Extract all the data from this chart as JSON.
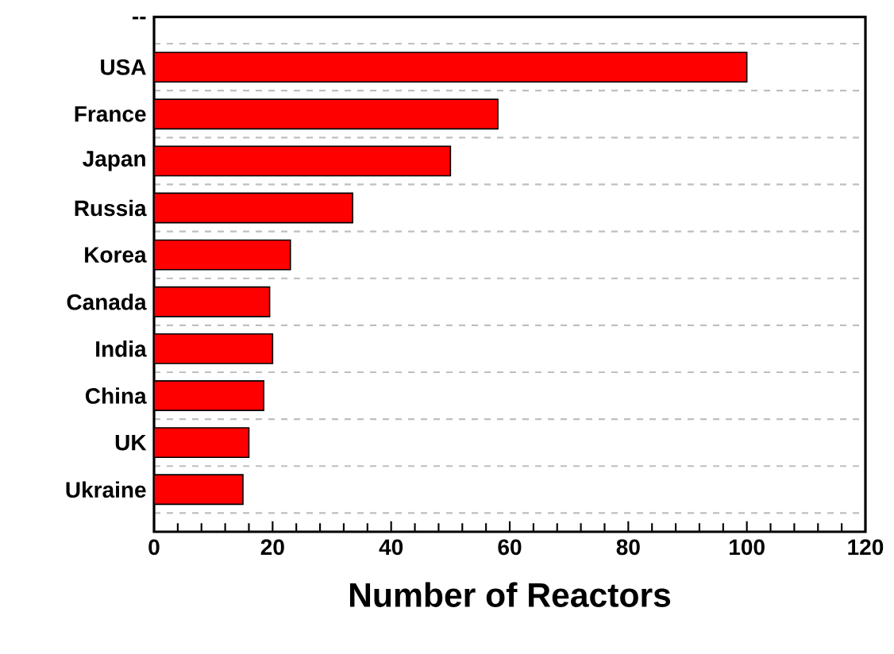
{
  "chart_data": {
    "type": "bar",
    "orientation": "horizontal",
    "xlabel": "Number of Reactors",
    "categories": [
      "--",
      "USA",
      "France",
      "Japan",
      "Russia",
      "Korea",
      "Canada",
      "India",
      "China",
      "UK",
      "Ukraine"
    ],
    "values": [
      null,
      100,
      58,
      50,
      33.5,
      23,
      19.5,
      20,
      18.5,
      16,
      15
    ],
    "color": "#ff0000",
    "xlim": [
      0,
      120
    ],
    "xticks": [
      0,
      20,
      40,
      60,
      80,
      100,
      120
    ],
    "grid": "y"
  }
}
